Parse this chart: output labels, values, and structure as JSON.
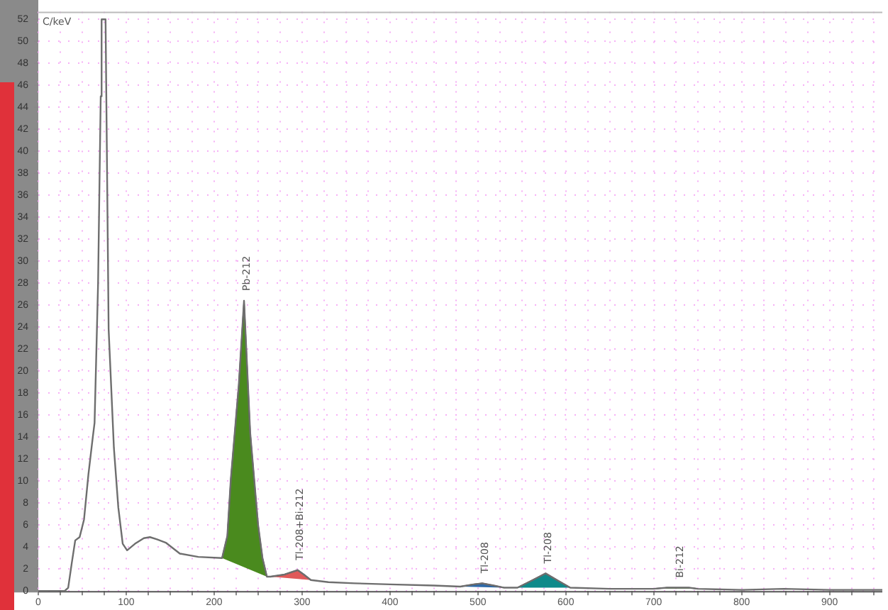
{
  "chart_data": {
    "type": "line",
    "ylabel": "C/keV",
    "xlim": [
      0,
      960
    ],
    "ylim": [
      0,
      52.7
    ],
    "xticks": [
      0,
      {
        "value": 25,
        "label": null
      },
      {
        "value": 50,
        "label": null
      },
      {
        "value": 75,
        "label": null
      },
      100,
      {
        "value": 125,
        "label": null
      },
      {
        "value": 150,
        "label": null
      },
      {
        "value": 175,
        "label": null
      },
      200,
      {
        "value": 225,
        "label": null
      },
      {
        "value": 250,
        "label": null
      },
      {
        "value": 275,
        "label": null
      },
      300,
      {
        "value": 325,
        "label": null
      },
      {
        "value": 350,
        "label": null
      },
      {
        "value": 375,
        "label": null
      },
      400,
      {
        "value": 425,
        "label": null
      },
      {
        "value": 450,
        "label": null
      },
      {
        "value": 475,
        "label": null
      },
      500,
      {
        "value": 525,
        "label": null
      },
      {
        "value": 550,
        "label": null
      },
      {
        "value": 575,
        "label": null
      },
      600,
      {
        "value": 625,
        "label": null
      },
      {
        "value": 650,
        "label": null
      },
      {
        "value": 675,
        "label": null
      },
      700,
      {
        "value": 725,
        "label": null
      },
      {
        "value": 750,
        "label": null
      },
      {
        "value": 775,
        "label": null
      },
      800,
      {
        "value": 825,
        "label": null
      },
      {
        "value": 850,
        "label": null
      },
      {
        "value": 875,
        "label": null
      },
      900,
      {
        "value": 925,
        "label": null
      },
      {
        "value": 950,
        "label": null
      }
    ],
    "yticks": [
      0,
      2,
      4,
      6,
      8,
      10,
      12,
      14,
      16,
      18,
      20,
      22,
      24,
      26,
      28,
      30,
      32,
      34,
      36,
      38,
      40,
      42,
      44,
      46,
      48,
      50,
      52
    ],
    "grid": true,
    "legend": false,
    "marker": "none",
    "line_style": "solid",
    "series": [
      {
        "color": "#6e6e6e",
        "x": [
          0,
          30,
          34,
          38,
          42,
          47,
          52,
          57,
          62,
          64,
          68,
          71,
          72,
          76.5,
          80,
          86,
          91,
          96,
          101,
          110,
          120,
          127,
          135,
          145,
          161,
          182,
          209,
          215,
          219,
          228,
          234,
          241,
          250,
          255,
          260,
          264,
          280,
          295,
          302,
          310,
          330,
          360,
          400,
          450,
          480,
          495,
          505,
          518,
          530,
          545,
          560,
          577,
          592,
          605,
          650,
          700,
          715,
          727,
          740,
          750,
          800,
          848,
          900,
          960
        ],
        "values": [
          0,
          0,
          0.3,
          2.5,
          4.6,
          4.9,
          6.5,
          10.6,
          14,
          15.3,
          28,
          45,
          52,
          52,
          23.8,
          13,
          7.6,
          4.3,
          3.7,
          4.3,
          4.8,
          4.9,
          4.7,
          4.4,
          3.4,
          3.1,
          3.0,
          5,
          10.2,
          18.7,
          26.4,
          14.4,
          6.0,
          3,
          1.3,
          1.3,
          1.5,
          1.9,
          1.5,
          1.0,
          0.8,
          0.7,
          0.6,
          0.5,
          0.4,
          0.6,
          0.7,
          0.5,
          0.3,
          0.3,
          0.9,
          1.6,
          0.9,
          0.3,
          0.2,
          0.2,
          0.3,
          0.3,
          0.3,
          0.2,
          0.1,
          0.2,
          0.1,
          0.1
        ]
      },
      {
        "type": "area",
        "color": "#4a8a1e",
        "x": [
          209,
          215,
          219,
          228,
          234,
          241,
          250,
          255,
          260
        ],
        "values": [
          3.0,
          5,
          10.2,
          18.7,
          26.4,
          14.4,
          6.0,
          3,
          1.3
        ]
      },
      {
        "type": "area",
        "color": "#e05a5a",
        "x": [
          264,
          280,
          295,
          302,
          310
        ],
        "values": [
          1.3,
          1.5,
          1.9,
          1.5,
          1.0
        ]
      },
      {
        "type": "area",
        "color": "#2e6aa8",
        "x": [
          480,
          495,
          505,
          518,
          530
        ],
        "values": [
          0.4,
          0.6,
          0.7,
          0.5,
          0.3
        ]
      },
      {
        "type": "area",
        "color": "#0f8a8a",
        "x": [
          545,
          560,
          577,
          592,
          605
        ],
        "values": [
          0.3,
          0.9,
          1.6,
          0.9,
          0.3
        ]
      },
      {
        "type": "area",
        "color": "#5a9a30",
        "x": [
          700,
          715,
          727,
          740,
          750
        ],
        "values": [
          0.2,
          0.3,
          0.3,
          0.3,
          0.2
        ]
      }
    ],
    "annotations": [
      {
        "text": "Pb-212",
        "x": 234,
        "y": 26.4
      },
      {
        "text": "Tl-208+Bi-212",
        "x": 295,
        "y": 1.9
      },
      {
        "text": "Tl-208",
        "x": 505,
        "y": 0.7
      },
      {
        "text": "Tl-208",
        "x": 577,
        "y": 1.6
      },
      {
        "text": "Bi-212",
        "x": 727,
        "y": 0.3
      }
    ]
  }
}
